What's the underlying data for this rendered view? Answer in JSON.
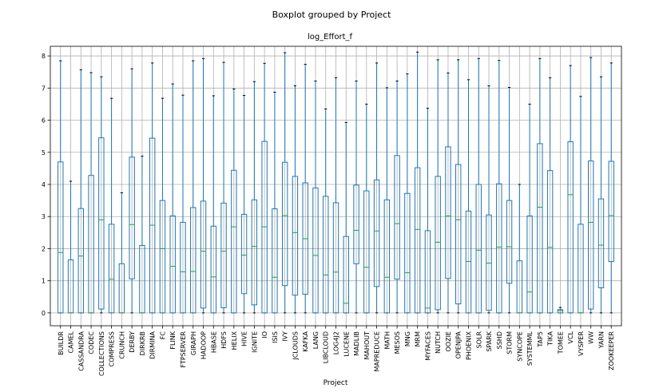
{
  "chart_data": {
    "type": "boxplot",
    "suptitle": "Boxplot grouped by Project",
    "title": "log_Effort_f",
    "xlabel": "Project",
    "ylabel": "",
    "ylim": [
      -0.4,
      8.3
    ],
    "yticks": [
      0,
      1,
      2,
      3,
      4,
      5,
      6,
      7,
      8
    ],
    "grid": true,
    "colors": {
      "box": "#1f77b4",
      "median": "#2ca02c",
      "whisker_cap": "#000000",
      "grid": "#b0b0b0"
    },
    "boxes": [
      {
        "category": "BUILDR",
        "min": 0,
        "q1": 0,
        "median": 1.88,
        "q3": 4.7,
        "max": 7.85
      },
      {
        "category": "CAMEL",
        "min": 0,
        "q1": 0,
        "median": 0,
        "q3": 1.65,
        "max": 4.1
      },
      {
        "category": "CASSANDRA",
        "min": 0,
        "q1": 0,
        "median": 1.77,
        "q3": 3.25,
        "max": 7.57
      },
      {
        "category": "CODEC",
        "min": 0,
        "q1": 0,
        "median": 0,
        "q3": 4.28,
        "max": 7.48
      },
      {
        "category": "COLLECTIONS",
        "min": 0,
        "q1": 0.12,
        "median": 2.9,
        "q3": 5.45,
        "max": 7.35
      },
      {
        "category": "COMPRESS",
        "min": 0,
        "q1": 0,
        "median": 1.05,
        "q3": 2.76,
        "max": 6.68
      },
      {
        "category": "CRUNCH",
        "min": 0,
        "q1": 0,
        "median": 0,
        "q3": 1.53,
        "max": 3.74
      },
      {
        "category": "DERBY",
        "min": 0,
        "q1": 1.06,
        "median": 2.75,
        "q3": 4.85,
        "max": 7.6
      },
      {
        "category": "DIRKRB",
        "min": 0,
        "q1": 0,
        "median": 0,
        "q3": 2.1,
        "max": 4.88
      },
      {
        "category": "DIRMINA",
        "min": 0,
        "q1": 0,
        "median": 2.73,
        "q3": 5.44,
        "max": 7.78
      },
      {
        "category": "FC",
        "min": 0,
        "q1": 0,
        "median": 2.0,
        "q3": 3.5,
        "max": 6.68
      },
      {
        "category": "FLINK",
        "min": 0,
        "q1": 0,
        "median": 1.45,
        "q3": 3.02,
        "max": 7.13
      },
      {
        "category": "FTPSERVER",
        "min": 0,
        "q1": 0,
        "median": 1.28,
        "q3": 2.82,
        "max": 6.78
      },
      {
        "category": "GIRAPH",
        "min": 0,
        "q1": 0,
        "median": 1.29,
        "q3": 3.28,
        "max": 7.85
      },
      {
        "category": "HADOOP",
        "min": 0,
        "q1": 0.15,
        "median": 1.92,
        "q3": 3.48,
        "max": 7.92
      },
      {
        "category": "HBASE",
        "min": 0,
        "q1": 0,
        "median": 1.12,
        "q3": 2.7,
        "max": 6.76
      },
      {
        "category": "HDFS",
        "min": 0,
        "q1": 0.16,
        "median": 1.92,
        "q3": 3.42,
        "max": 7.8
      },
      {
        "category": "HELIX",
        "min": 0,
        "q1": 0,
        "median": 2.68,
        "q3": 4.44,
        "max": 6.97
      },
      {
        "category": "HIVE",
        "min": 0,
        "q1": 0.6,
        "median": 1.8,
        "q3": 3.07,
        "max": 6.77
      },
      {
        "category": "IGNITE",
        "min": 0,
        "q1": 0.25,
        "median": 2.07,
        "q3": 3.52,
        "max": 7.2
      },
      {
        "category": "IO",
        "min": 0,
        "q1": 0,
        "median": 2.68,
        "q3": 5.34,
        "max": 7.77
      },
      {
        "category": "ISIS",
        "min": 0,
        "q1": 0,
        "median": 1.11,
        "q3": 3.24,
        "max": 6.87
      },
      {
        "category": "IVY",
        "min": 0,
        "q1": 0.85,
        "median": 3.03,
        "q3": 4.69,
        "max": 8.1
      },
      {
        "category": "JCLOUDS",
        "min": 0,
        "q1": 0.55,
        "median": 2.5,
        "q3": 4.25,
        "max": 7.07
      },
      {
        "category": "KAFKA",
        "min": 0,
        "q1": 0.58,
        "median": 2.31,
        "q3": 4.05,
        "max": 7.74
      },
      {
        "category": "LANG",
        "min": 0,
        "q1": 0,
        "median": 1.79,
        "q3": 3.89,
        "max": 7.22
      },
      {
        "category": "LIBCLOUD",
        "min": 0,
        "q1": 0,
        "median": 1.18,
        "q3": 3.63,
        "max": 6.35
      },
      {
        "category": "LOG4J2",
        "min": 0,
        "q1": 0,
        "median": 1.27,
        "q3": 3.43,
        "max": 7.32
      },
      {
        "category": "LUCENE",
        "min": 0,
        "q1": 0,
        "median": 0.3,
        "q3": 2.38,
        "max": 5.93
      },
      {
        "category": "MADLIB",
        "min": 0,
        "q1": 1.53,
        "median": 2.57,
        "q3": 3.98,
        "max": 7.22
      },
      {
        "category": "MAHOUT",
        "min": 0,
        "q1": 0,
        "median": 1.42,
        "q3": 3.8,
        "max": 6.5
      },
      {
        "category": "MAPREDUCE",
        "min": 0,
        "q1": 0.82,
        "median": 2.55,
        "q3": 4.14,
        "max": 7.78
      },
      {
        "category": "MATH",
        "min": 0,
        "q1": 0,
        "median": 1.11,
        "q3": 3.52,
        "max": 7.01
      },
      {
        "category": "MESOS",
        "min": 0,
        "q1": 1.05,
        "median": 2.78,
        "q3": 4.9,
        "max": 7.22
      },
      {
        "category": "MNG",
        "min": 0,
        "q1": 0,
        "median": 1.25,
        "q3": 3.72,
        "max": 7.44
      },
      {
        "category": "MRM",
        "min": 0,
        "q1": 0,
        "median": 2.6,
        "q3": 4.52,
        "max": 8.12
      },
      {
        "category": "MYFACES",
        "min": 0,
        "q1": 0,
        "median": 0.15,
        "q3": 2.56,
        "max": 6.37
      },
      {
        "category": "NUTCH",
        "min": 0,
        "q1": 0.1,
        "median": 2.2,
        "q3": 4.25,
        "max": 7.88
      },
      {
        "category": "OOZIE",
        "min": 0,
        "q1": 1.07,
        "median": 3.02,
        "q3": 5.17,
        "max": 7.47
      },
      {
        "category": "OPENJPA",
        "min": 0,
        "q1": 0.28,
        "median": 2.9,
        "q3": 4.62,
        "max": 7.88
      },
      {
        "category": "PHOENIX",
        "min": 0,
        "q1": 0,
        "median": 1.6,
        "q3": 3.17,
        "max": 7.26
      },
      {
        "category": "SOLR",
        "min": 0,
        "q1": 0,
        "median": 1.95,
        "q3": 4.0,
        "max": 7.92
      },
      {
        "category": "SPARK",
        "min": 0,
        "q1": 0.08,
        "median": 1.55,
        "q3": 3.05,
        "max": 7.07
      },
      {
        "category": "SSHD",
        "min": 0,
        "q1": 0,
        "median": 2.05,
        "q3": 4.02,
        "max": 7.86
      },
      {
        "category": "STORM",
        "min": 0,
        "q1": 0.92,
        "median": 2.06,
        "q3": 3.5,
        "max": 7.02
      },
      {
        "category": "SYNCOPE",
        "min": 0,
        "q1": 0,
        "median": 0,
        "q3": 1.62,
        "max": 4.0
      },
      {
        "category": "SYSTEMML",
        "min": 0,
        "q1": 0,
        "median": 0.65,
        "q3": 3.02,
        "max": 6.5
      },
      {
        "category": "TAP5",
        "min": 0,
        "q1": 0,
        "median": 3.29,
        "q3": 5.27,
        "max": 7.92
      },
      {
        "category": "TIKA",
        "min": 0,
        "q1": 0,
        "median": 2.04,
        "q3": 4.43,
        "max": 7.32
      },
      {
        "category": "TOMEE",
        "min": 0,
        "q1": 0,
        "median": 0.07,
        "q3": 0.1,
        "max": 0.17
      },
      {
        "category": "VCL",
        "min": 0,
        "q1": 0,
        "median": 3.68,
        "q3": 5.33,
        "max": 7.7
      },
      {
        "category": "VYSPER",
        "min": 0,
        "q1": 0,
        "median": 0,
        "q3": 2.76,
        "max": 6.74
      },
      {
        "category": "WW",
        "min": 0,
        "q1": 0.12,
        "median": 2.82,
        "q3": 4.73,
        "max": 7.95
      },
      {
        "category": "YARN",
        "min": 0,
        "q1": 0.78,
        "median": 2.11,
        "q3": 3.55,
        "max": 7.35
      },
      {
        "category": "ZOOKEEPER",
        "min": 0,
        "q1": 1.6,
        "median": 3.03,
        "q3": 4.72,
        "max": 7.78
      }
    ]
  }
}
